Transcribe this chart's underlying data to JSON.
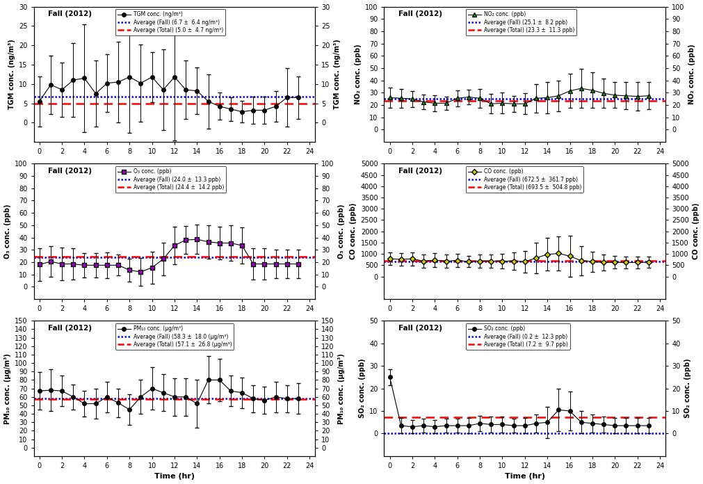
{
  "hours": [
    0,
    1,
    2,
    3,
    4,
    5,
    6,
    7,
    8,
    9,
    10,
    11,
    12,
    13,
    14,
    15,
    16,
    17,
    18,
    19,
    20,
    21,
    22,
    23
  ],
  "tgm_values": [
    5.5,
    9.8,
    8.5,
    11.0,
    11.5,
    7.5,
    10.2,
    10.5,
    11.8,
    10.2,
    11.8,
    8.5,
    11.8,
    8.5,
    8.2,
    5.5,
    4.2,
    3.5,
    2.8,
    3.2,
    3.2,
    4.2,
    6.5,
    6.5
  ],
  "tgm_errors": [
    6.5,
    7.5,
    7.0,
    9.5,
    14.0,
    8.5,
    7.5,
    10.5,
    14.5,
    10.0,
    6.5,
    10.5,
    16.5,
    7.5,
    6.0,
    7.0,
    3.5,
    3.0,
    2.8,
    3.5,
    3.5,
    4.0,
    7.5,
    5.5
  ],
  "tgm_fall_avg": 6.7,
  "tgm_total_avg": 5.0,
  "tgm_ylim": [
    -5,
    30
  ],
  "tgm_yticks": [
    0,
    5,
    10,
    15,
    20,
    25,
    30
  ],
  "tgm_ylabel": "TGM conc. (ng/m³)",
  "tgm_data_label": "TGM conc. (ng/m³)",
  "tgm_fall_label": "Average (Fall) (6.7 ±  6.4 ng/m³)",
  "tgm_total_label": "Average (Total) (5.0 ±  4.7 ng/m³)",
  "no2_values": [
    26.0,
    25.5,
    25.0,
    22.5,
    21.5,
    21.5,
    25.5,
    26.5,
    25.5,
    21.0,
    21.5,
    21.0,
    21.0,
    25.5,
    26.0,
    27.5,
    31.5,
    33.5,
    32.0,
    29.5,
    28.0,
    27.5,
    27.0,
    27.5
  ],
  "no2_errors": [
    8.0,
    7.5,
    6.5,
    6.0,
    6.5,
    5.5,
    6.5,
    6.0,
    7.5,
    8.0,
    8.5,
    6.5,
    8.5,
    11.5,
    12.5,
    12.5,
    14.0,
    16.0,
    14.5,
    12.0,
    10.5,
    11.0,
    11.5,
    11.0
  ],
  "no2_fall_avg": 25.1,
  "no2_total_avg": 23.3,
  "no2_ylim": [
    -10,
    100
  ],
  "no2_yticks": [
    0,
    10,
    20,
    30,
    40,
    50,
    60,
    70,
    80,
    90,
    100
  ],
  "no2_ylabel": "NO₂ conc. (ppb)",
  "no2_data_label": "NO₂ conc. (ppb)",
  "no2_fall_label": "Average (Fall) (25.1 ±  8.2 ppb)",
  "no2_total_label": "Average (Total) (23.3 ±  11.3 ppb)",
  "o3_values": [
    18.0,
    20.5,
    18.5,
    18.5,
    17.5,
    17.5,
    17.5,
    17.5,
    13.5,
    12.0,
    15.5,
    22.5,
    33.5,
    38.0,
    38.5,
    36.5,
    35.5,
    35.5,
    33.5,
    18.5,
    18.5,
    18.5,
    18.5,
    18.5
  ],
  "o3_errors": [
    13.5,
    12.5,
    13.5,
    12.5,
    10.0,
    10.0,
    10.5,
    8.5,
    9.5,
    11.5,
    13.0,
    13.5,
    15.5,
    11.5,
    12.0,
    13.5,
    13.5,
    14.5,
    14.5,
    12.5,
    12.5,
    11.5,
    11.5,
    11.5
  ],
  "o3_fall_avg": 24.0,
  "o3_total_avg": 24.4,
  "o3_ylim": [
    -10,
    100
  ],
  "o3_yticks": [
    0,
    10,
    20,
    30,
    40,
    50,
    60,
    70,
    80,
    90,
    100
  ],
  "o3_ylabel": "O₃ conc. (ppb)",
  "o3_data_label": "O₃ conc. (ppb)",
  "o3_fall_label": "Average (Fall) (24.0 ±  13.3 ppb)",
  "o3_total_label": "Average (Total) (24.4 ±  14.2 ppb)",
  "co_values": [
    780,
    760,
    780,
    680,
    720,
    680,
    710,
    660,
    680,
    680,
    680,
    680,
    660,
    820,
    980,
    1020,
    900,
    700,
    660,
    620,
    630,
    620,
    620,
    630
  ],
  "co_errors": [
    280,
    290,
    300,
    280,
    310,
    280,
    280,
    250,
    290,
    300,
    320,
    380,
    480,
    680,
    720,
    750,
    900,
    650,
    450,
    350,
    280,
    270,
    270,
    250
  ],
  "co_fall_avg": 672.5,
  "co_total_avg": 693.5,
  "co_ylim": [
    -1000,
    5000
  ],
  "co_yticks": [
    0,
    500,
    1000,
    1500,
    2000,
    2500,
    3000,
    3500,
    4000,
    4500,
    5000
  ],
  "co_ylabel": "CO conc. (ppb)",
  "co_data_label": "CO conc. (ppb)",
  "co_fall_label": "Average (Fall) (672.5 ±  361.7 ppb)",
  "co_total_label": "Average (Total) (693.5 ±  504.8 ppb)",
  "pm10_values": [
    67,
    68,
    67,
    60,
    52,
    52,
    60,
    53,
    45,
    60,
    70,
    65,
    60,
    60,
    52,
    80,
    80,
    67,
    65,
    58,
    56,
    60,
    58,
    58
  ],
  "pm10_errors": [
    22,
    25,
    18,
    15,
    15,
    18,
    18,
    17,
    18,
    20,
    25,
    22,
    22,
    22,
    28,
    28,
    25,
    18,
    18,
    16,
    16,
    18,
    16,
    18
  ],
  "pm10_fall_avg": 58.3,
  "pm10_total_avg": 57.1,
  "pm10_ylim": [
    -10,
    150
  ],
  "pm10_yticks": [
    0,
    10,
    20,
    30,
    40,
    50,
    60,
    70,
    80,
    90,
    100,
    110,
    120,
    130,
    140,
    150
  ],
  "pm10_ylabel": "PM₁₀ conc. (μg/m³)",
  "pm10_data_label": "PM₁₀ conc. (μg/m³)",
  "pm10_fall_label": "Average (Fall) (58.3 ±  18.0 (μg/m³)",
  "pm10_total_label": "Average (Total) (57.1 ±  26.8 (μg/m³)",
  "so2_values": [
    25.0,
    3.5,
    3.0,
    3.5,
    3.0,
    3.5,
    3.5,
    3.5,
    4.5,
    4.0,
    4.0,
    3.5,
    3.5,
    4.5,
    5.0,
    10.5,
    10.0,
    5.0,
    4.5,
    4.0,
    3.5,
    3.5,
    3.5,
    3.5
  ],
  "so2_errors": [
    3.5,
    3.5,
    3.0,
    3.0,
    3.0,
    3.0,
    3.0,
    3.5,
    3.5,
    3.5,
    3.5,
    3.0,
    3.5,
    4.0,
    7.0,
    9.5,
    8.5,
    5.0,
    4.0,
    3.5,
    3.5,
    3.5,
    3.5,
    3.5
  ],
  "so2_fall_avg": 0.2,
  "so2_total_avg": 7.2,
  "so2_ylim": [
    -10,
    50
  ],
  "so2_yticks": [
    0,
    10,
    20,
    30,
    40,
    50
  ],
  "so2_ylabel": "SO₂ conc. (ppb)",
  "so2_data_label": "SO₂ conc. (ppb)",
  "so2_fall_label": "Average (Fall) (0.2 ±  12.3 ppb)",
  "so2_total_label": "Average (Total) (7.2 ±  9.7 ppb)",
  "season_label": "Fall (2012)",
  "xlabel": "Time (hr)",
  "blue_color": "#0000FF",
  "red_color": "#FF0000",
  "black_color": "#000000"
}
